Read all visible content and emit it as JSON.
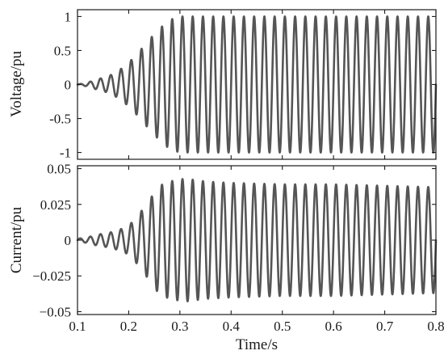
{
  "chart_data": [
    {
      "type": "line",
      "ylabel": "Voltage/pu",
      "xlabel": "",
      "xlim": [
        0.1,
        0.8
      ],
      "ylim": [
        -1.1,
        1.1
      ],
      "yticks": [
        1,
        0.5,
        0,
        -0.5,
        -1
      ],
      "ytick_labels": [
        "1",
        "0.5",
        "0",
        "-0.5",
        "-1"
      ],
      "xticks": [
        0.1,
        0.2,
        0.3,
        0.4,
        0.5,
        0.6,
        0.7,
        0.8
      ],
      "xtick_labels": [],
      "grid": false,
      "color": "#555555",
      "series": [
        {
          "frequency_hz": 50,
          "t_start": 0.1,
          "t_end": 0.8,
          "amplitude_envelope": {
            "t": [
              0.1,
              0.12,
              0.14,
              0.16,
              0.18,
              0.2,
              0.22,
              0.24,
              0.26,
              0.28,
              0.3,
              0.8
            ],
            "amplitude": [
              0.0,
              0.03,
              0.08,
              0.12,
              0.2,
              0.32,
              0.48,
              0.66,
              0.82,
              0.95,
              1.0,
              1.0
            ]
          }
        }
      ]
    },
    {
      "type": "line",
      "ylabel": "Current/pu",
      "xlabel": "Time/s",
      "xlim": [
        0.1,
        0.8
      ],
      "ylim": [
        -0.052,
        0.052
      ],
      "yticks": [
        0.05,
        0.025,
        0,
        -0.025,
        -0.05
      ],
      "ytick_labels": [
        "0.05",
        "0.025",
        "0",
        "−0.025",
        "−0.05"
      ],
      "xticks": [
        0.1,
        0.2,
        0.3,
        0.4,
        0.5,
        0.6,
        0.7,
        0.8
      ],
      "xtick_labels": [
        "0.1",
        "0.2",
        "0.3",
        "0.4",
        "0.5",
        "0.6",
        "0.7",
        "0.8"
      ],
      "grid": false,
      "color": "#555555",
      "series": [
        {
          "frequency_hz": 50,
          "t_start": 0.1,
          "t_end": 0.8,
          "amplitude_envelope": {
            "t": [
              0.1,
              0.12,
              0.14,
              0.16,
              0.18,
              0.2,
              0.22,
              0.24,
              0.26,
              0.28,
              0.31,
              0.35,
              0.4,
              0.5,
              0.6,
              0.7,
              0.8
            ],
            "amplitude": [
              0.001,
              0.002,
              0.004,
              0.005,
              0.007,
              0.01,
              0.018,
              0.028,
              0.038,
              0.041,
              0.043,
              0.041,
              0.04,
              0.039,
              0.039,
              0.038,
              0.037
            ]
          }
        }
      ]
    }
  ]
}
